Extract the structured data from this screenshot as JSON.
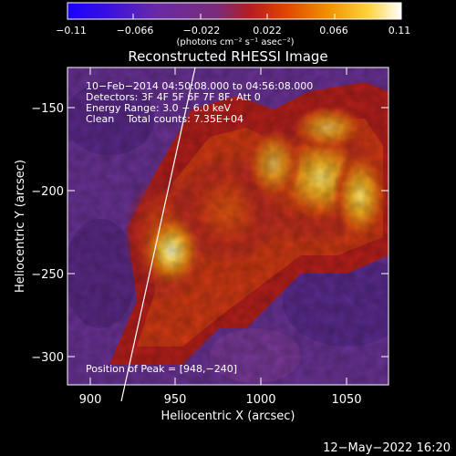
{
  "colorbar": {
    "ticks": [
      "−0.11",
      "−0.066",
      "−0.022",
      "0.022",
      "0.066",
      "0.11"
    ],
    "unit_label": "(photons cm⁻² s⁻¹ asec⁻²)",
    "colors": [
      "#1a00ff",
      "#4b00d0",
      "#6a2a9e",
      "#7a2f7a",
      "#c01a10",
      "#e04a00",
      "#f08a00",
      "#ffc000",
      "#ffff80",
      "#ffffff"
    ]
  },
  "plot": {
    "title": "Reconstructed RHESSI Image",
    "xlabel": "Heliocentric X (arcsec)",
    "ylabel": "Heliocentric Y (arcsec)",
    "x_ticks": [
      "900",
      "950",
      "1000",
      "1050"
    ],
    "y_ticks": [
      "−150",
      "−200",
      "−250",
      "−300"
    ],
    "info_lines": [
      "10−Feb−2014 04:50:08.000 to 04:56:08.000",
      "Detectors: 3F 4F 5F 6F 7F 8F, Att 0",
      "Energy Range: 3.0 − 6.0 keV",
      "Clean    Total counts: 7.35E+04"
    ],
    "peak_label": "Position of Peak = [948,−240]"
  },
  "footer": {
    "date": "12−May−2022 16:20"
  },
  "palette": {
    "background": "#000000",
    "purple": "#6a3396",
    "dark_purple": "#4a2a7a",
    "red": "#b8201a",
    "orange": "#f06a10",
    "yellow": "#ffd040",
    "white_hot": "#fff8c0"
  }
}
